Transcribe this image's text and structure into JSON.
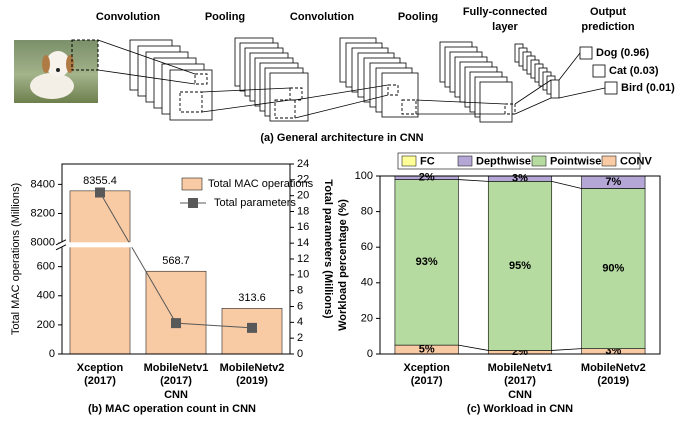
{
  "diagram": {
    "stages": [
      [
        "Convolution"
      ],
      [
        "Pooling"
      ],
      [
        "Convolution"
      ],
      [
        "Pooling"
      ],
      [
        "Fully-connected",
        "layer"
      ],
      [
        "Output",
        "prediction"
      ]
    ],
    "outputs": [
      "Dog (0.96)",
      "Cat (0.03)",
      "Bird (0.01)"
    ],
    "caption": "(a) General architecture in CNN"
  },
  "chart_data": [
    {
      "type": "bar",
      "caption": "(b) MAC operation count in CNN",
      "xlabel": "CNN",
      "ylabel": "Total MAC operations (Millions)",
      "y2label": "Total parameters (Millions)",
      "categories": [
        [
          "Xception",
          "(2017)"
        ],
        [
          "MobileNetv1",
          "(2017)"
        ],
        [
          "MobileNetv2",
          "(2019)"
        ]
      ],
      "series": [
        {
          "name": "Total MAC operations",
          "type": "bar",
          "color": "#f8cba5",
          "values": [
            8355.4,
            568.7,
            313.6
          ]
        },
        {
          "name": "Total parameters",
          "type": "line",
          "axis": "y2",
          "color": "#595959",
          "values": [
            20.4,
            3.9,
            3.3
          ]
        }
      ],
      "ylim": [
        0,
        8540
      ],
      "ybreak": [
        750,
        7985
      ],
      "yticks": [
        0,
        200,
        400,
        600,
        8000,
        8200,
        8400
      ],
      "y2lim": [
        0,
        24
      ],
      "y2ticks": [
        0,
        2,
        4,
        6,
        8,
        10,
        12,
        14,
        16,
        18,
        20,
        22,
        24
      ],
      "legend": "upper right"
    },
    {
      "type": "stacked_bar",
      "caption": "(c) Workload in CNN",
      "xlabel": "CNN",
      "ylabel": "Workload percentage (%)",
      "categories": [
        [
          "Xception",
          "(2017)"
        ],
        [
          "MobileNetv1",
          "(2017)"
        ],
        [
          "MobileNetv2",
          "(2019)"
        ]
      ],
      "series": [
        {
          "name": "CONV",
          "color": "#f8cba5",
          "values": [
            5,
            2,
            3
          ],
          "value_labels": [
            "5%",
            "2%",
            "3%"
          ]
        },
        {
          "name": "Pointwise",
          "color": "#b5dba0",
          "values": [
            93,
            95,
            90
          ],
          "value_labels": [
            "93%",
            "95%",
            "90%"
          ]
        },
        {
          "name": "Depthwise",
          "color": "#b4a7d6",
          "values": [
            2,
            3,
            7
          ],
          "value_labels": [
            "2%",
            "3%",
            "7%"
          ]
        },
        {
          "name": "FC",
          "color": "#ffff99",
          "values": [
            0,
            0,
            0
          ]
        }
      ],
      "ylim": [
        0,
        100
      ],
      "yticks": [
        0,
        20,
        40,
        60,
        80,
        100
      ],
      "legend": "top"
    }
  ]
}
